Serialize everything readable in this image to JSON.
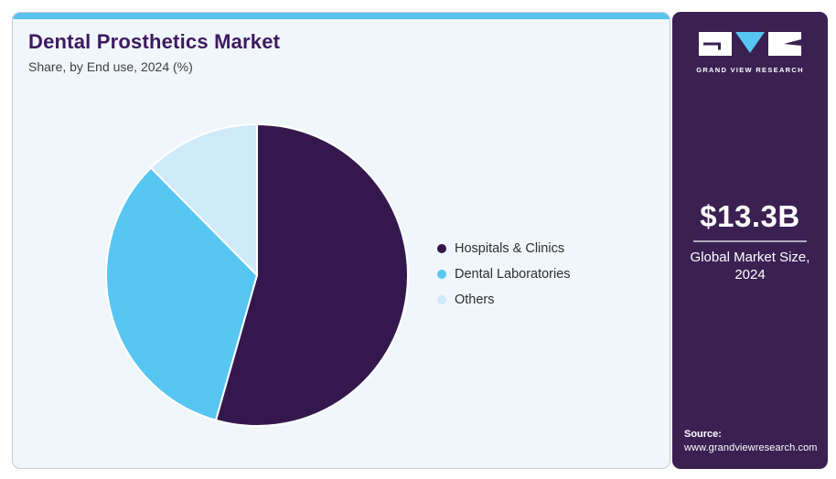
{
  "header": {
    "title": "Dental Prosthetics Market",
    "subtitle": "Share, by End use, 2024 (%)"
  },
  "chart_data": {
    "type": "pie",
    "title": "Dental Prosthetics Market Share, by End use, 2024 (%)",
    "unit": "percent",
    "start_angle_deg": 0,
    "direction": "clockwise",
    "legend_position": "right-middle",
    "data_labels_shown": false,
    "values_estimated_from_angles": true,
    "slices": [
      {
        "label": "Hospitals & Clinics",
        "value": 54.4,
        "color": "#34184d"
      },
      {
        "label": "Dental Laboratories",
        "value": 33.2,
        "color": "#57c6f2"
      },
      {
        "label": "Others",
        "value": 12.4,
        "color": "#cfeafa"
      }
    ],
    "slice_border_color": "#ffffff"
  },
  "sidebar": {
    "brand": "GRAND VIEW RESEARCH",
    "market_size_value": "$13.3B",
    "market_size_label": "Global Market Size, 2024",
    "source_label": "Source:",
    "source_url": "www.grandviewresearch.com"
  },
  "theme": {
    "accent_bar_color": "#5ac3ef",
    "card_background": "#f0f6fa",
    "card_border": "#c6ccd3",
    "title_color": "#3d1a5f",
    "subtitle_color": "#3f3f3f",
    "sidebar_background": "#3b2052",
    "logo_triangle_color": "#57c6f2",
    "divider_color": "#b2aabf"
  }
}
